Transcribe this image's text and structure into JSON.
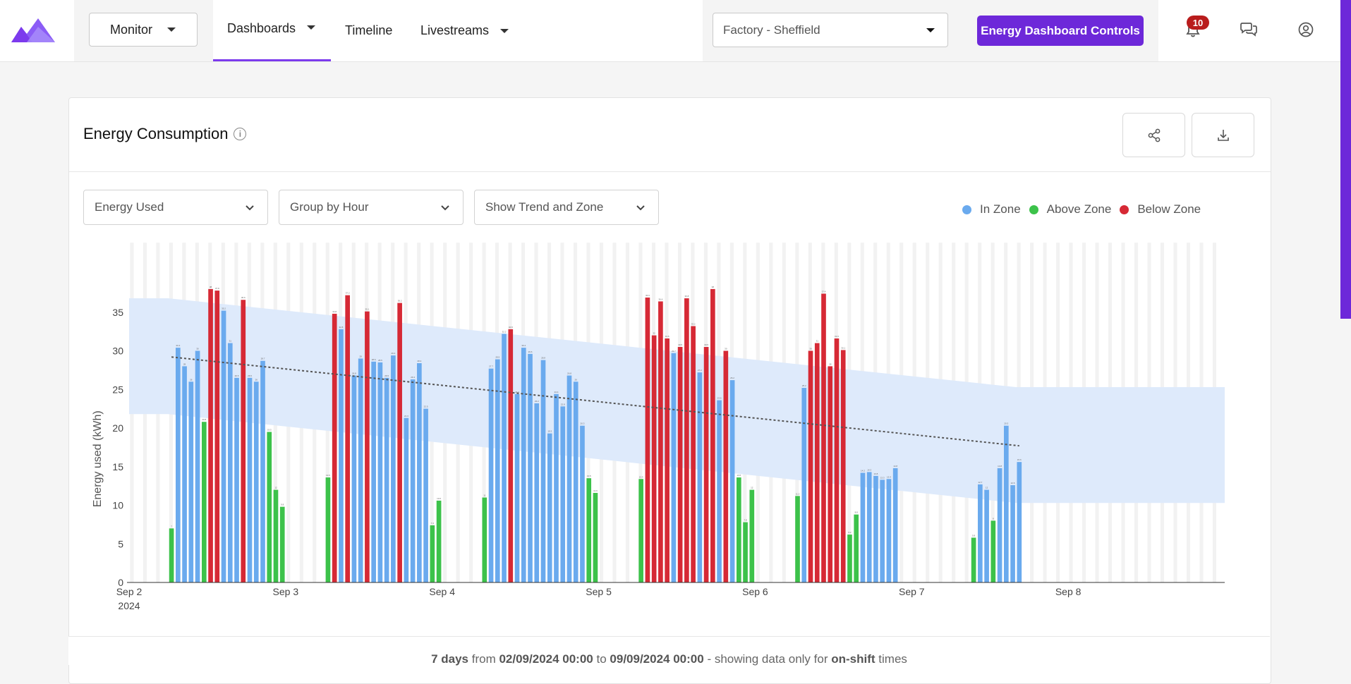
{
  "header": {
    "monitor_label": "Monitor",
    "nav": [
      {
        "label": "Dashboards",
        "active": true,
        "has_dropdown": true
      },
      {
        "label": "Timeline",
        "active": false,
        "has_dropdown": false
      },
      {
        "label": "Livestreams",
        "active": false,
        "has_dropdown": true
      }
    ],
    "site_select_value": "Factory - Sheffield",
    "controls_button_label": "Energy Dashboard Controls",
    "notification_count": "10",
    "icons": [
      "logo-mountain-icon",
      "bell-icon",
      "chat-icon",
      "user-icon"
    ],
    "accent_color": "#6d28d9"
  },
  "card": {
    "title": "Energy Consumption",
    "info_icon": "info-icon",
    "share_icon": "share-icon",
    "download_icon": "download-icon",
    "filters": [
      {
        "value": "Energy Used"
      },
      {
        "value": "Group by Hour"
      },
      {
        "value": "Show Trend and Zone"
      }
    ],
    "legend": [
      {
        "label": "In Zone",
        "color": "#6aaaee"
      },
      {
        "label": "Above Zone",
        "color": "#3cc24a"
      },
      {
        "label": "Below Zone",
        "color": "#d62935"
      }
    ],
    "footer": {
      "days": "7 days",
      "from_word": "from",
      "start": "02/09/2024 00:00",
      "to_word": "to",
      "end": "09/09/2024 00:00",
      "suffix": "- showing data only for",
      "emph": "on-shift",
      "tail": "times"
    }
  },
  "chart_data": {
    "type": "bar",
    "ylabel": "Energy used (kWh)",
    "xlabel": "",
    "ylim": [
      0,
      44
    ],
    "yticks": [
      0,
      5,
      10,
      15,
      20,
      25,
      30,
      35
    ],
    "xlim_hours": [
      0,
      168
    ],
    "x_ticks": [
      {
        "label": "Sep 2",
        "sub": "2024",
        "hour": 0
      },
      {
        "label": "Sep 3",
        "sub": "",
        "hour": 24
      },
      {
        "label": "Sep 4",
        "sub": "",
        "hour": 48
      },
      {
        "label": "Sep 5",
        "sub": "",
        "hour": 72
      },
      {
        "label": "Sep 6",
        "sub": "",
        "hour": 96
      },
      {
        "label": "Sep 7",
        "sub": "",
        "hour": 120
      },
      {
        "label": "Sep 8",
        "sub": "",
        "hour": 144
      }
    ],
    "status_colors": {
      "in": "#6aaaee",
      "above": "#3cc24a",
      "below": "#d62935"
    },
    "zone": {
      "upper": [
        [
          0,
          36.8
        ],
        [
          6,
          36.8
        ],
        [
          136,
          25.3
        ],
        [
          168,
          25.3
        ]
      ],
      "lower": [
        [
          0,
          21.8
        ],
        [
          6,
          21.8
        ],
        [
          136,
          10.3
        ],
        [
          168,
          10.3
        ]
      ],
      "color": "#dce9fb"
    },
    "trend": {
      "start": [
        6.5,
        29.2
      ],
      "end": [
        136.5,
        17.7
      ]
    },
    "series": [
      {
        "name": "Energy used",
        "points": [
          {
            "hour": 6,
            "value": 7.0,
            "status": "above"
          },
          {
            "hour": 7,
            "value": 30.4,
            "status": "in"
          },
          {
            "hour": 8,
            "value": 28.0,
            "status": "in"
          },
          {
            "hour": 9,
            "value": 26.0,
            "status": "in"
          },
          {
            "hour": 10,
            "value": 30.0,
            "status": "in"
          },
          {
            "hour": 11,
            "value": 20.8,
            "status": "above"
          },
          {
            "hour": 12,
            "value": 38.0,
            "status": "below"
          },
          {
            "hour": 13,
            "value": 37.8,
            "status": "below"
          },
          {
            "hour": 14,
            "value": 35.2,
            "status": "in"
          },
          {
            "hour": 15,
            "value": 31.0,
            "status": "in"
          },
          {
            "hour": 16,
            "value": 26.5,
            "status": "in"
          },
          {
            "hour": 17,
            "value": 36.6,
            "status": "below"
          },
          {
            "hour": 18,
            "value": 26.5,
            "status": "in"
          },
          {
            "hour": 19,
            "value": 26.0,
            "status": "in"
          },
          {
            "hour": 20,
            "value": 28.7,
            "status": "in"
          },
          {
            "hour": 21,
            "value": 19.5,
            "status": "above"
          },
          {
            "hour": 22,
            "value": 12.0,
            "status": "above"
          },
          {
            "hour": 23,
            "value": 9.8,
            "status": "above"
          },
          {
            "hour": 30,
            "value": 13.6,
            "status": "above"
          },
          {
            "hour": 31,
            "value": 34.8,
            "status": "below"
          },
          {
            "hour": 32,
            "value": 32.8,
            "status": "in"
          },
          {
            "hour": 33,
            "value": 37.2,
            "status": "below"
          },
          {
            "hour": 34,
            "value": 26.8,
            "status": "in"
          },
          {
            "hour": 35,
            "value": 29.0,
            "status": "in"
          },
          {
            "hour": 36,
            "value": 35.1,
            "status": "below"
          },
          {
            "hour": 37,
            "value": 28.6,
            "status": "in"
          },
          {
            "hour": 38,
            "value": 28.5,
            "status": "in"
          },
          {
            "hour": 39,
            "value": 26.5,
            "status": "in"
          },
          {
            "hour": 40,
            "value": 29.4,
            "status": "in"
          },
          {
            "hour": 41,
            "value": 36.2,
            "status": "below"
          },
          {
            "hour": 42,
            "value": 21.3,
            "status": "in"
          },
          {
            "hour": 43,
            "value": 26.3,
            "status": "in"
          },
          {
            "hour": 44,
            "value": 28.4,
            "status": "in"
          },
          {
            "hour": 45,
            "value": 22.5,
            "status": "in"
          },
          {
            "hour": 46,
            "value": 7.4,
            "status": "above"
          },
          {
            "hour": 47,
            "value": 10.6,
            "status": "above"
          },
          {
            "hour": 54,
            "value": 11.0,
            "status": "above"
          },
          {
            "hour": 55,
            "value": 27.7,
            "status": "in"
          },
          {
            "hour": 56,
            "value": 28.9,
            "status": "in"
          },
          {
            "hour": 57,
            "value": 32.2,
            "status": "in"
          },
          {
            "hour": 58,
            "value": 32.8,
            "status": "below"
          },
          {
            "hour": 59,
            "value": 24.4,
            "status": "in"
          },
          {
            "hour": 60,
            "value": 30.4,
            "status": "in"
          },
          {
            "hour": 61,
            "value": 29.6,
            "status": "in"
          },
          {
            "hour": 62,
            "value": 23.2,
            "status": "in"
          },
          {
            "hour": 63,
            "value": 28.8,
            "status": "in"
          },
          {
            "hour": 64,
            "value": 19.3,
            "status": "in"
          },
          {
            "hour": 65,
            "value": 24.4,
            "status": "in"
          },
          {
            "hour": 66,
            "value": 22.8,
            "status": "in"
          },
          {
            "hour": 67,
            "value": 26.8,
            "status": "in"
          },
          {
            "hour": 68,
            "value": 26.0,
            "status": "in"
          },
          {
            "hour": 69,
            "value": 20.3,
            "status": "in"
          },
          {
            "hour": 70,
            "value": 13.5,
            "status": "above"
          },
          {
            "hour": 71,
            "value": 11.6,
            "status": "above"
          },
          {
            "hour": 78,
            "value": 13.4,
            "status": "above"
          },
          {
            "hour": 79,
            "value": 36.9,
            "status": "below"
          },
          {
            "hour": 80,
            "value": 32.0,
            "status": "below"
          },
          {
            "hour": 81,
            "value": 36.4,
            "status": "below"
          },
          {
            "hour": 82,
            "value": 31.6,
            "status": "below"
          },
          {
            "hour": 83,
            "value": 29.7,
            "status": "in"
          },
          {
            "hour": 84,
            "value": 30.5,
            "status": "below"
          },
          {
            "hour": 85,
            "value": 36.8,
            "status": "below"
          },
          {
            "hour": 86,
            "value": 33.2,
            "status": "below"
          },
          {
            "hour": 87,
            "value": 27.2,
            "status": "in"
          },
          {
            "hour": 88,
            "value": 30.5,
            "status": "below"
          },
          {
            "hour": 89,
            "value": 38.0,
            "status": "below"
          },
          {
            "hour": 90,
            "value": 23.6,
            "status": "in"
          },
          {
            "hour": 91,
            "value": 30.0,
            "status": "below"
          },
          {
            "hour": 92,
            "value": 26.2,
            "status": "in"
          },
          {
            "hour": 93,
            "value": 13.6,
            "status": "above"
          },
          {
            "hour": 94,
            "value": 7.8,
            "status": "above"
          },
          {
            "hour": 95,
            "value": 12.0,
            "status": "above"
          },
          {
            "hour": 102,
            "value": 11.2,
            "status": "above"
          },
          {
            "hour": 103,
            "value": 25.2,
            "status": "in"
          },
          {
            "hour": 104,
            "value": 30.0,
            "status": "below"
          },
          {
            "hour": 105,
            "value": 31.0,
            "status": "below"
          },
          {
            "hour": 106,
            "value": 37.4,
            "status": "below"
          },
          {
            "hour": 107,
            "value": 28.0,
            "status": "below"
          },
          {
            "hour": 108,
            "value": 31.6,
            "status": "below"
          },
          {
            "hour": 109,
            "value": 30.1,
            "status": "below"
          },
          {
            "hour": 110,
            "value": 6.2,
            "status": "above"
          },
          {
            "hour": 111,
            "value": 8.8,
            "status": "above"
          },
          {
            "hour": 112,
            "value": 14.2,
            "status": "in"
          },
          {
            "hour": 113,
            "value": 14.3,
            "status": "in"
          },
          {
            "hour": 114,
            "value": 13.8,
            "status": "in"
          },
          {
            "hour": 115,
            "value": 13.3,
            "status": "in"
          },
          {
            "hour": 116,
            "value": 13.4,
            "status": "in"
          },
          {
            "hour": 117,
            "value": 14.8,
            "status": "in"
          },
          {
            "hour": 129,
            "value": 5.8,
            "status": "above"
          },
          {
            "hour": 130,
            "value": 12.7,
            "status": "in"
          },
          {
            "hour": 131,
            "value": 12.0,
            "status": "in"
          },
          {
            "hour": 132,
            "value": 8.0,
            "status": "above"
          },
          {
            "hour": 133,
            "value": 14.8,
            "status": "in"
          },
          {
            "hour": 134,
            "value": 20.3,
            "status": "in"
          },
          {
            "hour": 135,
            "value": 12.6,
            "status": "in"
          },
          {
            "hour": 136,
            "value": 15.6,
            "status": "in"
          }
        ]
      }
    ]
  }
}
